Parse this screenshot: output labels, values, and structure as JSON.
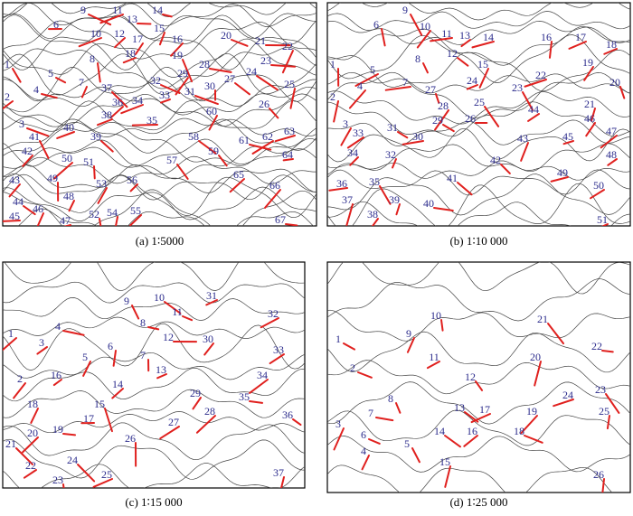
{
  "panels": [
    {
      "caption": "(a) 1∶5000",
      "labels": [
        "1",
        "2",
        "3",
        "4",
        "5",
        "6",
        "7",
        "8",
        "9",
        "10",
        "11",
        "12",
        "13",
        "14",
        "15",
        "16",
        "17",
        "18",
        "19",
        "20",
        "21",
        "22",
        "23",
        "24",
        "25",
        "26",
        "27",
        "28",
        "29",
        "30",
        "31",
        "32",
        "33",
        "34",
        "35",
        "36",
        "37",
        "38",
        "39",
        "40",
        "41",
        "42",
        "43",
        "44",
        "45",
        "46",
        "47",
        "48",
        "49",
        "50",
        "51",
        "52",
        "53",
        "54",
        "55",
        "56",
        "57",
        "58",
        "59",
        "60",
        "61",
        "62",
        "63",
        "64",
        "65",
        "66",
        "67"
      ]
    },
    {
      "caption": "(b) 1∶10 000",
      "labels": [
        "1",
        "2",
        "3",
        "4",
        "5",
        "6",
        "7",
        "8",
        "9",
        "10",
        "11",
        "12",
        "13",
        "14",
        "15",
        "16",
        "17",
        "18",
        "19",
        "20",
        "21",
        "22",
        "23",
        "24",
        "25",
        "26",
        "27",
        "28",
        "29",
        "30",
        "31",
        "32",
        "33",
        "34",
        "35",
        "36",
        "37",
        "38",
        "39",
        "40",
        "41",
        "42",
        "43",
        "44",
        "45",
        "46",
        "47",
        "48",
        "49",
        "50",
        "51"
      ]
    },
    {
      "caption": "(c) 1∶15 000",
      "labels": [
        "1",
        "2",
        "3",
        "4",
        "5",
        "6",
        "7",
        "8",
        "9",
        "10",
        "11",
        "12",
        "13",
        "14",
        "15",
        "16",
        "17",
        "18",
        "19",
        "20",
        "21",
        "22",
        "23",
        "24",
        "25",
        "26",
        "27",
        "28",
        "29",
        "30",
        "31",
        "32",
        "33",
        "34",
        "35",
        "36",
        "37"
      ]
    },
    {
      "caption": "(d) 1∶25 000",
      "labels": [
        "1",
        "2",
        "3",
        "4",
        "5",
        "6",
        "7",
        "8",
        "9",
        "10",
        "11",
        "12",
        "13",
        "14",
        "15",
        "16",
        "17",
        "18",
        "19",
        "20",
        "21",
        "22",
        "23",
        "24",
        "25",
        "26"
      ]
    }
  ]
}
